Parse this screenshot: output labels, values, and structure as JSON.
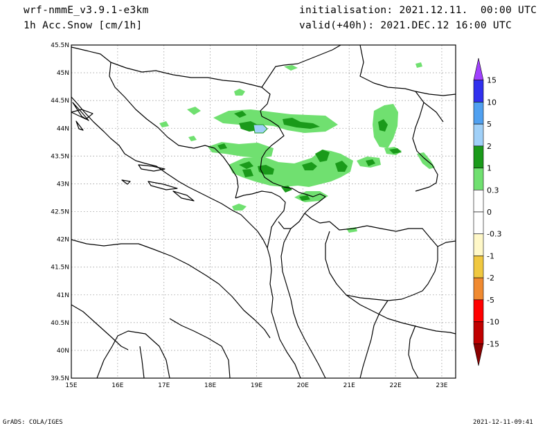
{
  "header": {
    "model": "wrf-nmmE_v3.9.1-e3km",
    "variable": "1h Acc.Snow [cm/1h]",
    "init": "initialisation: 2021.12.11.  00:00 UTC",
    "valid": "valid(+40h): 2021.DEC.12 16:00 UTC"
  },
  "footer": {
    "left": "GrADS: COLA/IGES",
    "right": "2021-12-11-09:41"
  },
  "map": {
    "lon_range": [
      15,
      23.3
    ],
    "lat_range": [
      39.5,
      45.5
    ],
    "lon_ticks": [
      "15E",
      "16E",
      "17E",
      "18E",
      "19E",
      "20E",
      "21E",
      "22E",
      "23E"
    ],
    "lat_ticks": [
      "39.5N",
      "40N",
      "40.5N",
      "41N",
      "41.5N",
      "42N",
      "42.5N",
      "43N",
      "43.5N",
      "44N",
      "44.5N",
      "45N",
      "45.5N"
    ],
    "grid": "dotted",
    "snow_areas": [
      {
        "lon": 18.8,
        "lat": 44.15,
        "value": 1
      },
      {
        "lon": 19.7,
        "lat": 44.05,
        "value": 1
      },
      {
        "lon": 19.05,
        "lat": 43.98,
        "value": 5
      },
      {
        "lon": 18.6,
        "lat": 43.65,
        "value": 1
      },
      {
        "lon": 20.45,
        "lat": 43.5,
        "value": 1
      },
      {
        "lon": 20.8,
        "lat": 43.3,
        "value": 1
      },
      {
        "lon": 21.45,
        "lat": 43.36,
        "value": 1
      },
      {
        "lon": 18.7,
        "lat": 43.2,
        "value": 1
      },
      {
        "lon": 19.6,
        "lat": 42.92,
        "value": 1
      },
      {
        "lon": 20.15,
        "lat": 42.77,
        "value": 1
      },
      {
        "lon": 21.9,
        "lat": 44.0,
        "value": 1
      },
      {
        "lon": 22.0,
        "lat": 43.6,
        "value": 1
      }
    ]
  },
  "colorbar": {
    "labels": [
      "15",
      "10",
      "5",
      "2",
      "1",
      "0.3",
      "0",
      "-0.3",
      "-1",
      "-2",
      "-5",
      "-10",
      "-15"
    ],
    "colors": [
      "#a040ff",
      "#3030ee",
      "#50a0f0",
      "#a0d0f8",
      "#1a9a1a",
      "#70e070",
      "#ffffff",
      "#ffffff",
      "#fff8c8",
      "#f0c840",
      "#f08a30",
      "#ff0000",
      "#c00000",
      "#8a0000"
    ]
  }
}
